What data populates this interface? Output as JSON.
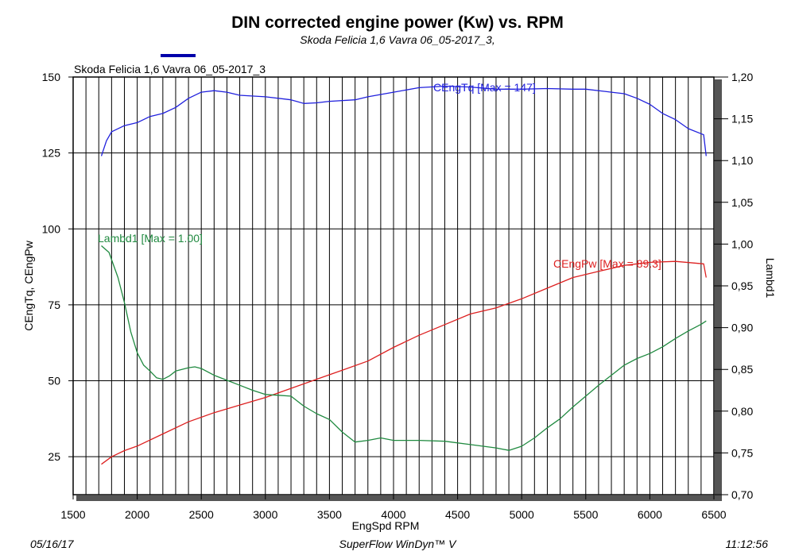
{
  "header": {
    "title": "DIN corrected engine power (Kw) vs. RPM",
    "subtitle": "Skoda Felicia 1,6 Vavra 06_05-2017_3,",
    "legend_label": "Skoda Felicia 1,6 Vavra 06_05-2017_3",
    "legend_color": "#0000aa"
  },
  "footer": {
    "date": "05/16/17",
    "software": "SuperFlow WinDyn™ V",
    "time": "11:12:56"
  },
  "chart_data": {
    "type": "line",
    "xlabel": "EngSpd RPM",
    "ylabel_left": "CEngTq, CEngPw",
    "ylabel_right": "Lambd1",
    "xlim": [
      1500,
      6500
    ],
    "ylim_left": [
      12.5,
      150
    ],
    "ylim_right": [
      0.7,
      1.2
    ],
    "x_ticks": [
      1500,
      2000,
      2500,
      3000,
      3500,
      4000,
      4500,
      5000,
      5500,
      6000,
      6500
    ],
    "x_tick_labels": [
      "1500",
      "2000",
      "2500",
      "3000",
      "3500",
      "4000",
      "4500",
      "5000",
      "5500",
      "6000",
      "6500"
    ],
    "y_left_ticks": [
      25,
      50,
      75,
      100,
      125,
      150
    ],
    "y_left_tick_labels": [
      "25",
      "50",
      "75",
      "100",
      "125",
      "150"
    ],
    "y_right_ticks": [
      0.7,
      0.75,
      0.8,
      0.85,
      0.9,
      0.95,
      1.0,
      1.05,
      1.1,
      1.15,
      1.2
    ],
    "y_right_tick_labels": [
      "0,70",
      "0,75",
      "0,80",
      "0,85",
      "0,90",
      "0,95",
      "1,00",
      "1,05",
      "1,10",
      "1,15",
      "1,20"
    ],
    "grid": true,
    "series": [
      {
        "name": "CEngTq",
        "annotation": "CEngTq [Max = 147]",
        "axis": "left",
        "color": "#2020dd",
        "points": [
          [
            1720,
            124
          ],
          [
            1760,
            129
          ],
          [
            1800,
            132
          ],
          [
            1900,
            134
          ],
          [
            2000,
            135
          ],
          [
            2100,
            137
          ],
          [
            2200,
            138
          ],
          [
            2300,
            140
          ],
          [
            2400,
            143
          ],
          [
            2500,
            145
          ],
          [
            2600,
            145.5
          ],
          [
            2700,
            145
          ],
          [
            2800,
            144
          ],
          [
            3000,
            143.5
          ],
          [
            3200,
            142.5
          ],
          [
            3300,
            141.3
          ],
          [
            3400,
            141.5
          ],
          [
            3500,
            142
          ],
          [
            3700,
            142.5
          ],
          [
            3800,
            143.5
          ],
          [
            4000,
            145
          ],
          [
            4200,
            146.5
          ],
          [
            4400,
            147
          ],
          [
            4600,
            146.7
          ],
          [
            4800,
            146
          ],
          [
            5000,
            146
          ],
          [
            5200,
            146.2
          ],
          [
            5400,
            146
          ],
          [
            5500,
            146
          ],
          [
            5700,
            145
          ],
          [
            5800,
            144.5
          ],
          [
            5900,
            143
          ],
          [
            6000,
            141
          ],
          [
            6100,
            138
          ],
          [
            6200,
            136
          ],
          [
            6300,
            133
          ],
          [
            6420,
            131
          ],
          [
            6440,
            124
          ]
        ]
      },
      {
        "name": "CEngPw",
        "annotation": "CEngPw [Max = 89.3]",
        "axis": "left",
        "color": "#dd2020",
        "points": [
          [
            1720,
            22.5
          ],
          [
            1800,
            25
          ],
          [
            1900,
            27
          ],
          [
            2000,
            28.5
          ],
          [
            2200,
            32.5
          ],
          [
            2400,
            36.5
          ],
          [
            2600,
            39.5
          ],
          [
            2800,
            42
          ],
          [
            3000,
            44.5
          ],
          [
            3200,
            47.5
          ],
          [
            3400,
            50.5
          ],
          [
            3600,
            53.5
          ],
          [
            3800,
            56.5
          ],
          [
            4000,
            61
          ],
          [
            4200,
            65
          ],
          [
            4400,
            68.5
          ],
          [
            4600,
            72
          ],
          [
            4800,
            74
          ],
          [
            5000,
            77
          ],
          [
            5200,
            80.5
          ],
          [
            5400,
            84
          ],
          [
            5600,
            86
          ],
          [
            5800,
            88
          ],
          [
            6000,
            89
          ],
          [
            6200,
            89.3
          ],
          [
            6420,
            88.5
          ],
          [
            6440,
            84
          ]
        ]
      },
      {
        "name": "Lambd1",
        "annotation": "Lambd1 [Max = 1.00]",
        "axis": "right",
        "color": "#208a40",
        "points": [
          [
            1720,
            0.998
          ],
          [
            1780,
            0.99
          ],
          [
            1850,
            0.96
          ],
          [
            1900,
            0.93
          ],
          [
            1950,
            0.895
          ],
          [
            2000,
            0.87
          ],
          [
            2050,
            0.855
          ],
          [
            2100,
            0.848
          ],
          [
            2150,
            0.84
          ],
          [
            2200,
            0.838
          ],
          [
            2250,
            0.842
          ],
          [
            2300,
            0.848
          ],
          [
            2400,
            0.852
          ],
          [
            2450,
            0.853
          ],
          [
            2500,
            0.851
          ],
          [
            2600,
            0.843
          ],
          [
            2700,
            0.837
          ],
          [
            2800,
            0.831
          ],
          [
            2900,
            0.825
          ],
          [
            3000,
            0.82
          ],
          [
            3100,
            0.819
          ],
          [
            3200,
            0.818
          ],
          [
            3300,
            0.806
          ],
          [
            3400,
            0.797
          ],
          [
            3500,
            0.79
          ],
          [
            3600,
            0.775
          ],
          [
            3700,
            0.763
          ],
          [
            3800,
            0.765
          ],
          [
            3900,
            0.768
          ],
          [
            4000,
            0.765
          ],
          [
            4200,
            0.765
          ],
          [
            4400,
            0.764
          ],
          [
            4600,
            0.76
          ],
          [
            4800,
            0.756
          ],
          [
            4900,
            0.753
          ],
          [
            5000,
            0.758
          ],
          [
            5100,
            0.768
          ],
          [
            5200,
            0.78
          ],
          [
            5300,
            0.791
          ],
          [
            5400,
            0.805
          ],
          [
            5500,
            0.818
          ],
          [
            5600,
            0.831
          ],
          [
            5700,
            0.843
          ],
          [
            5800,
            0.855
          ],
          [
            5900,
            0.863
          ],
          [
            6000,
            0.869
          ],
          [
            6100,
            0.877
          ],
          [
            6200,
            0.887
          ],
          [
            6300,
            0.896
          ],
          [
            6400,
            0.904
          ],
          [
            6440,
            0.908
          ]
        ]
      }
    ]
  }
}
